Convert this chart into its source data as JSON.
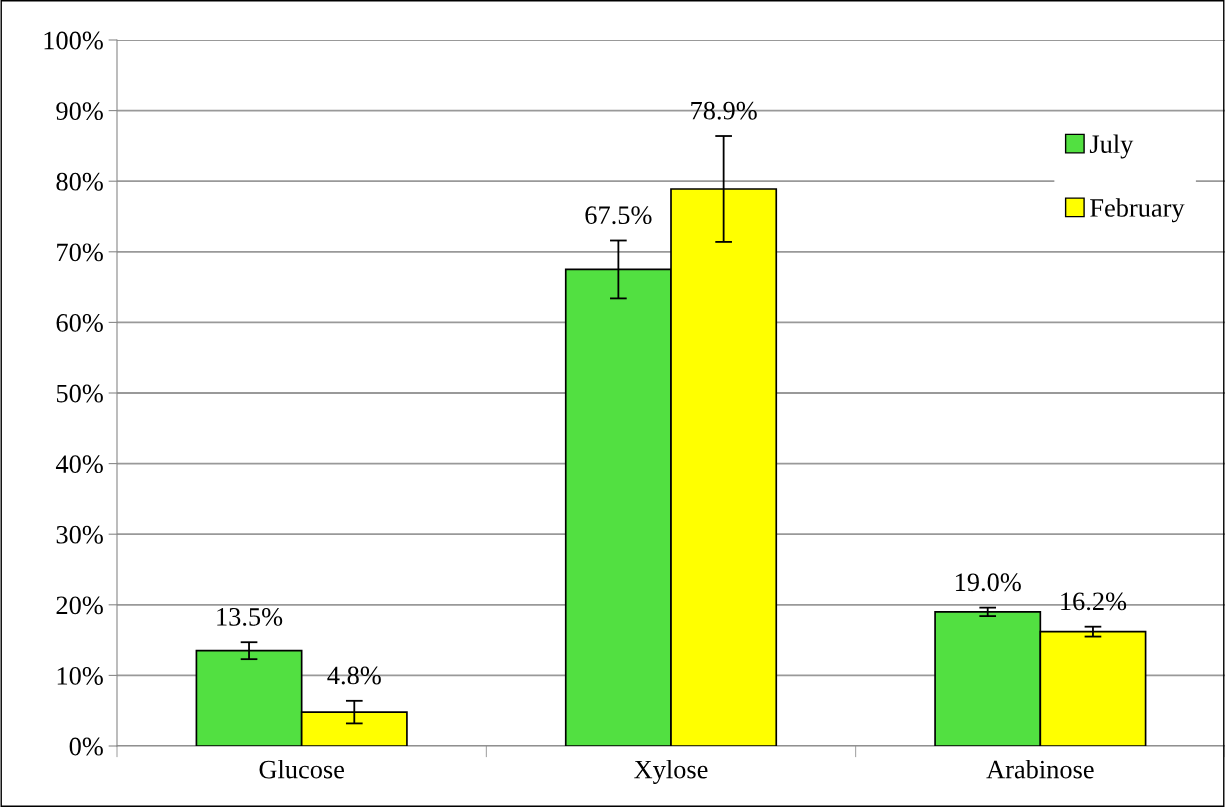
{
  "chart_data": {
    "type": "bar",
    "categories": [
      "Glucose",
      "Xylose",
      "Arabinose"
    ],
    "series": [
      {
        "name": "July",
        "color": "#52e041",
        "values": [
          13.5,
          67.5,
          19.0
        ],
        "errors": [
          1.2,
          4.1,
          0.6
        ],
        "value_labels": [
          "13.5%",
          "67.5%",
          "19.0%"
        ]
      },
      {
        "name": "February",
        "color": "#ffff00",
        "values": [
          4.8,
          78.9,
          16.2
        ],
        "errors": [
          1.6,
          7.5,
          0.7
        ],
        "value_labels": [
          "4.8%",
          "78.9%",
          "16.2%"
        ]
      }
    ],
    "ylim": [
      0,
      100
    ],
    "yticks": [
      {
        "value": 0,
        "label": "0%"
      },
      {
        "value": 10,
        "label": "10%"
      },
      {
        "value": 20,
        "label": "20%"
      },
      {
        "value": 30,
        "label": "30%"
      },
      {
        "value": 40,
        "label": "40%"
      },
      {
        "value": 50,
        "label": "50%"
      },
      {
        "value": 60,
        "label": "60%"
      },
      {
        "value": 70,
        "label": "70%"
      },
      {
        "value": 80,
        "label": "80%"
      },
      {
        "value": 90,
        "label": "90%"
      },
      {
        "value": 100,
        "label": "100%"
      }
    ],
    "grid": "y",
    "legend": "top right"
  }
}
